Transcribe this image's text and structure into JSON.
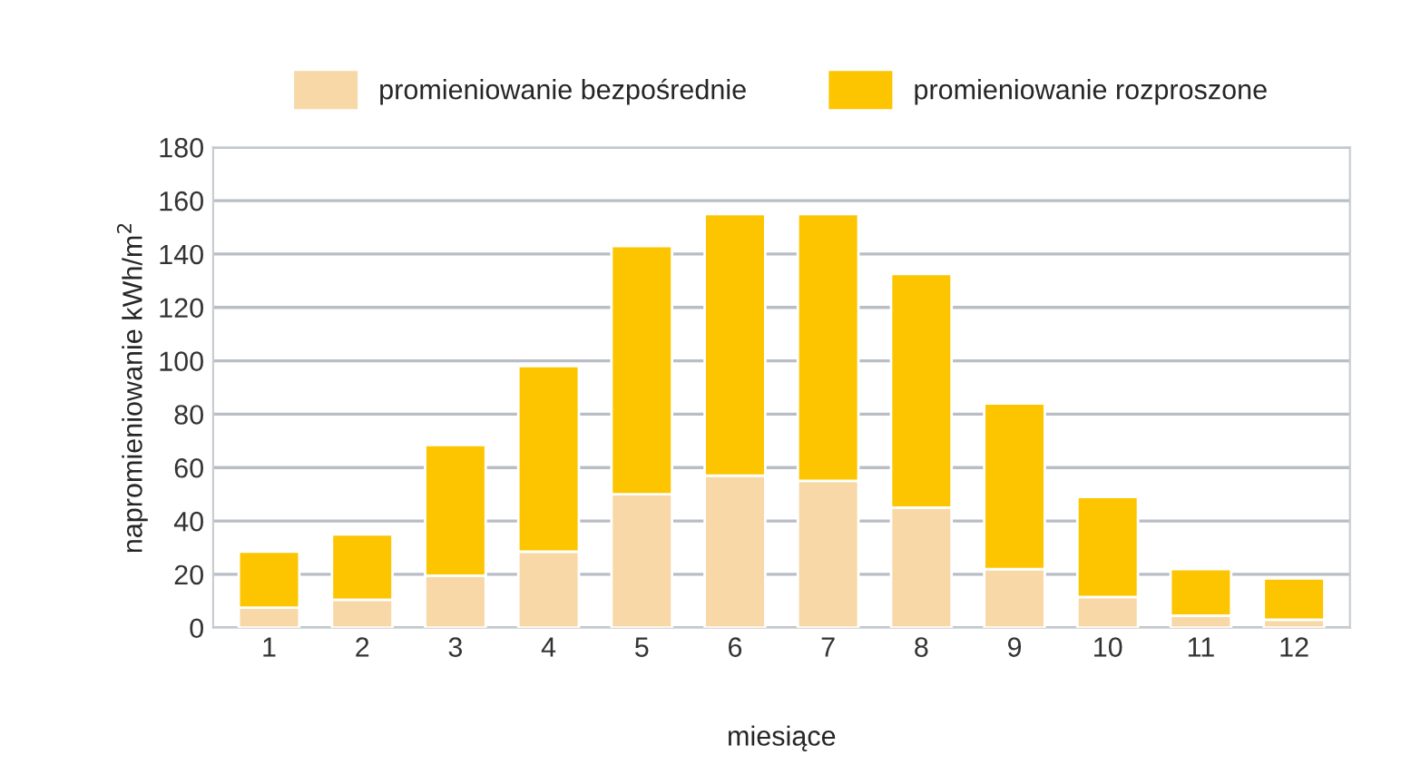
{
  "chart_data": {
    "type": "bar",
    "stacked": true,
    "xlabel": "miesiące",
    "ylabel": "napromieniowanie kWh/m$^{2}$",
    "categories": [
      "1",
      "2",
      "3",
      "4",
      "5",
      "6",
      "7",
      "8",
      "9",
      "10",
      "11",
      "12"
    ],
    "series": [
      {
        "name": "promieniowanie bezpośrednie",
        "color": "#f7d8a6",
        "values": [
          7.5,
          10.5,
          19.5,
          28.5,
          50,
          57,
          55,
          45,
          22,
          11.5,
          4.5,
          3
        ]
      },
      {
        "name": "promieniowanie rozproszone",
        "color": "#fcc500",
        "values": [
          21,
          24.5,
          49,
          69.5,
          93,
          98,
          100,
          87.5,
          62,
          37.5,
          17.5,
          15.5
        ]
      }
    ],
    "ylim": [
      0,
      180
    ],
    "yticks": [
      0,
      20,
      40,
      60,
      80,
      100,
      120,
      140,
      160,
      180
    ],
    "grid": "y",
    "legend": "top"
  }
}
